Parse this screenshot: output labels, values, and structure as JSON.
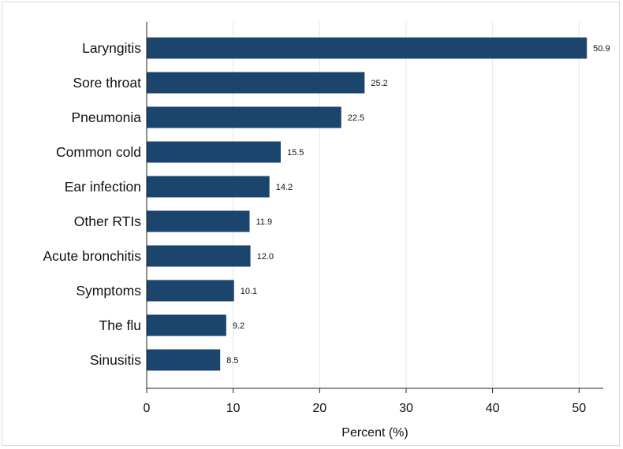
{
  "chart_data": {
    "type": "bar",
    "orientation": "horizontal",
    "categories": [
      "Laryngitis",
      "Sore throat",
      "Pneumonia",
      "Common cold",
      "Ear infection",
      "Other RTIs",
      "Acute bronchitis",
      "Symptoms",
      "The flu",
      "Sinusitis"
    ],
    "values": [
      50.9,
      25.2,
      22.5,
      15.5,
      14.2,
      11.9,
      12.0,
      10.1,
      9.2,
      8.5
    ],
    "value_labels": [
      "50.9",
      "25.2",
      "22.5",
      "15.5",
      "14.2",
      "11.9",
      "12.0",
      "10.1",
      "9.2",
      "8.5"
    ],
    "xlabel": "Percent (%)",
    "ylabel": "",
    "title": "",
    "xlim": [
      0,
      52.8
    ],
    "xticks": [
      0,
      10,
      20,
      30,
      40,
      50
    ],
    "xtick_labels": [
      "0",
      "10",
      "20",
      "30",
      "40",
      "50"
    ],
    "grid": "vertical",
    "legend": "none",
    "colors": {
      "bar": "#1c456e",
      "grid": "#dfe8e8",
      "axis": "#222222"
    }
  }
}
